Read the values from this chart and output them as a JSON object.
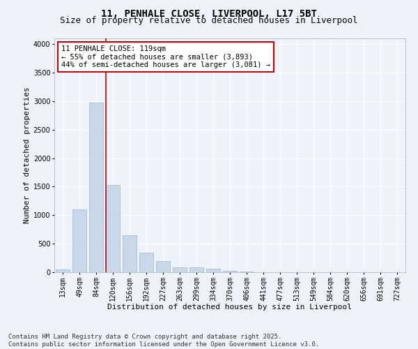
{
  "title_line1": "11, PENHALE CLOSE, LIVERPOOL, L17 5BT",
  "title_line2": "Size of property relative to detached houses in Liverpool",
  "xlabel": "Distribution of detached houses by size in Liverpool",
  "ylabel": "Number of detached properties",
  "bar_color": "#c8d8e8",
  "bar_edgecolor": "#a0b8d0",
  "bar_linewidth": 0.5,
  "categories": [
    "13sqm",
    "49sqm",
    "84sqm",
    "120sqm",
    "156sqm",
    "192sqm",
    "227sqm",
    "263sqm",
    "299sqm",
    "334sqm",
    "370sqm",
    "406sqm",
    "441sqm",
    "477sqm",
    "513sqm",
    "549sqm",
    "584sqm",
    "620sqm",
    "656sqm",
    "691sqm",
    "727sqm"
  ],
  "values": [
    50,
    1100,
    2980,
    1530,
    650,
    340,
    195,
    90,
    90,
    65,
    30,
    10,
    5,
    2,
    1,
    1,
    0,
    0,
    0,
    0,
    0
  ],
  "ylim": [
    0,
    4100
  ],
  "yticks": [
    0,
    500,
    1000,
    1500,
    2000,
    2500,
    3000,
    3500,
    4000
  ],
  "vline_color": "#cc0000",
  "annotation_text": "11 PENHALE CLOSE: 119sqm\n← 55% of detached houses are smaller (3,893)\n44% of semi-detached houses are larger (3,081) →",
  "annotation_box_color": "#ffffff",
  "annotation_box_edgecolor": "#cc0000",
  "background_color": "#eef2fa",
  "grid_color": "#ffffff",
  "footer_text": "Contains HM Land Registry data © Crown copyright and database right 2025.\nContains public sector information licensed under the Open Government Licence v3.0.",
  "title_fontsize": 10,
  "subtitle_fontsize": 9,
  "axis_label_fontsize": 8,
  "tick_fontsize": 7,
  "annotation_fontsize": 7.5,
  "footer_fontsize": 6.5
}
